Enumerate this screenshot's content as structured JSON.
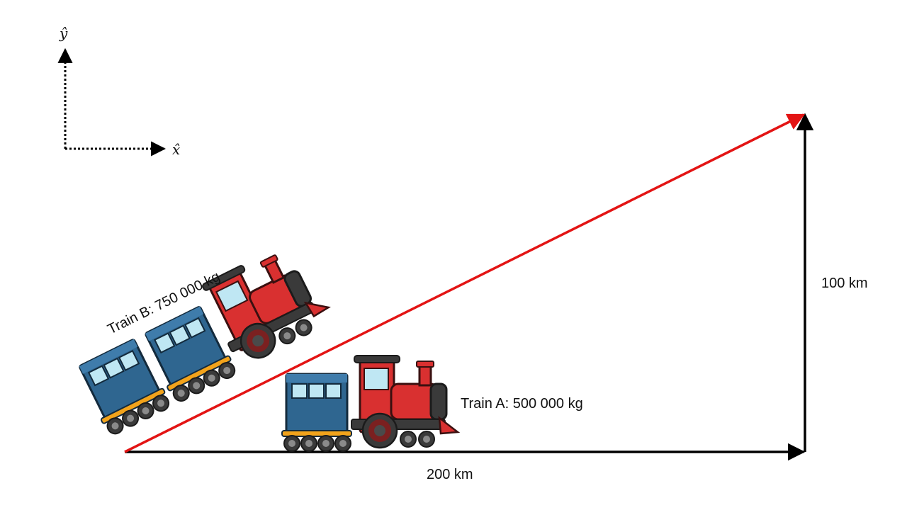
{
  "axes": {
    "x_symbol": "x̂",
    "y_symbol": "ŷ"
  },
  "labels": {
    "horizontal_distance": "200 km",
    "vertical_distance": "100 km",
    "train_a": "Train A: 500 000 kg",
    "train_b": "Train B: 750 000 kg"
  },
  "colors": {
    "displacement_arrow": "#e31414",
    "component_arrows": "#000000",
    "locomotive_red": "#d93030",
    "carriage_blue": "#2f6690",
    "wheel_dark": "#3a3a3a",
    "frame_orange": "#f2a31b"
  }
}
